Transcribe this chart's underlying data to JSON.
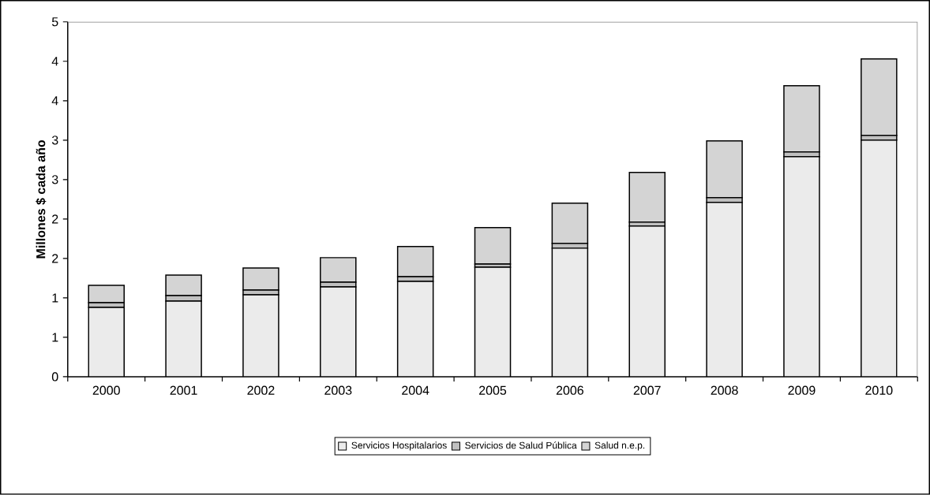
{
  "chart_data": {
    "type": "bar",
    "stacked": true,
    "ylabel": "Millones $ cada año",
    "categories": [
      "2000",
      "2001",
      "2002",
      "2003",
      "2004",
      "2005",
      "2006",
      "2007",
      "2008",
      "2009",
      "2010"
    ],
    "series": [
      {
        "name": "Servicios Hospitalarios",
        "color": "#ebebeb",
        "values": [
          0.88,
          0.96,
          1.04,
          1.14,
          1.21,
          1.39,
          1.63,
          1.91,
          2.21,
          2.79,
          3.0
        ]
      },
      {
        "name": "Servicios de Salud Pública",
        "color": "#c0c0c0",
        "values": [
          0.06,
          0.07,
          0.06,
          0.06,
          0.06,
          0.04,
          0.06,
          0.05,
          0.06,
          0.06,
          0.06
        ]
      },
      {
        "name": "Salud n.e.p.",
        "color": "#d4d4d4",
        "values": [
          0.22,
          0.26,
          0.28,
          0.31,
          0.38,
          0.46,
          0.51,
          0.63,
          0.72,
          0.84,
          0.97
        ]
      }
    ],
    "ylim": [
      0,
      4.5
    ],
    "yticks": [
      0,
      {
        "value": 0.5,
        "label": "1"
      },
      1,
      {
        "value": 1.5,
        "label": "2"
      },
      2,
      {
        "value": 2.5,
        "label": "3"
      },
      3,
      {
        "value": 3.5,
        "label": "4"
      },
      4,
      {
        "value": 4.5,
        "label": "5"
      }
    ],
    "legend": "bottom"
  }
}
